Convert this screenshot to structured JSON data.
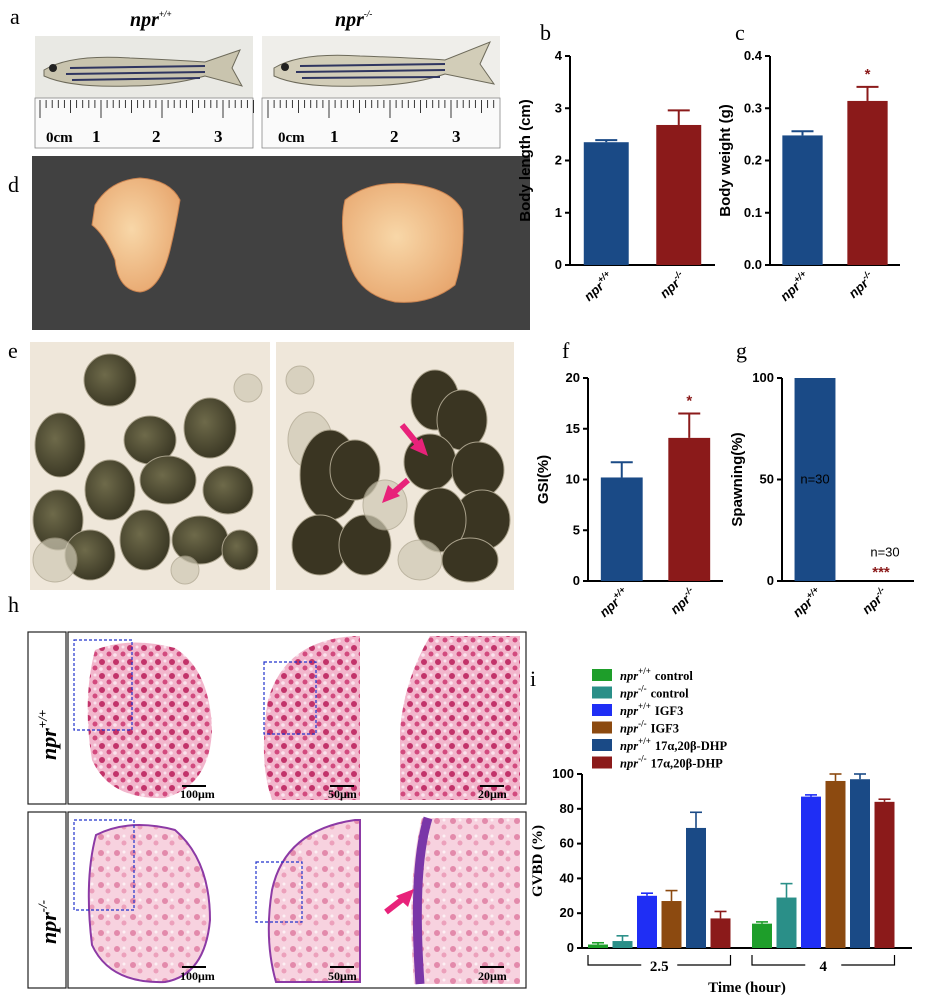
{
  "panel_labels": {
    "a": "a",
    "b": "b",
    "c": "c",
    "d": "d",
    "e": "e",
    "f": "f",
    "g": "g",
    "h": "h",
    "i": "i"
  },
  "genotypes": {
    "wt_base": "npr",
    "wt_sup": "+/+",
    "ko_base": "npr",
    "ko_sup": "-/-",
    "ko_sup_h": "-/-"
  },
  "ruler": {
    "unit": "0cm",
    "ticks": [
      "1",
      "2",
      "3"
    ]
  },
  "scale_bars": {
    "s100": "100μm",
    "s50": "50μm",
    "s20": "20μm"
  },
  "colors": {
    "wt": "#1a4a86",
    "ko": "#8b1a1a",
    "green": "#1e9e2a",
    "teal": "#2a8f88",
    "blue": "#1f2ef5",
    "brown": "#8c4a10",
    "navy": "#1a4a86",
    "maroon": "#8b1a1a",
    "star": "#8b1a1a",
    "arrow": "#e8227a",
    "dashed_box": "#2233cc"
  },
  "chart_data": [
    {
      "id": "b",
      "type": "bar",
      "categories": [
        "npr+/+",
        "npr-/-"
      ],
      "values": [
        2.35,
        2.68
      ],
      "errors": [
        0.04,
        0.28
      ],
      "ylabel": "Body length (cm)",
      "ylim": [
        0,
        4
      ],
      "yticks": [
        "0",
        "1",
        "2",
        "3",
        "4"
      ],
      "significance": [
        "",
        ""
      ]
    },
    {
      "id": "c",
      "type": "bar",
      "categories": [
        "npr+/+",
        "npr-/-"
      ],
      "values": [
        0.248,
        0.314
      ],
      "errors": [
        0.008,
        0.027
      ],
      "ylabel": "Body weight (g)",
      "ylim": [
        0,
        0.4
      ],
      "yticks": [
        "0.0",
        "0.1",
        "0.2",
        "0.3",
        "0.4"
      ],
      "significance": [
        "",
        "*"
      ]
    },
    {
      "id": "f",
      "type": "bar",
      "categories": [
        "npr+/+",
        "npr-/-"
      ],
      "values": [
        10.2,
        14.1
      ],
      "errors": [
        1.5,
        2.4
      ],
      "ylabel": "GSI(%)",
      "ylim": [
        0,
        20
      ],
      "yticks": [
        "0",
        "5",
        "10",
        "15",
        "20"
      ],
      "significance": [
        "",
        "*"
      ]
    },
    {
      "id": "g",
      "type": "bar",
      "categories": [
        "npr+/+",
        "npr-/-"
      ],
      "values": [
        100,
        0
      ],
      "ylabel": "Spawning(%)",
      "ylim": [
        0,
        100
      ],
      "yticks": [
        "0",
        "50",
        "100"
      ],
      "annotations": [
        "n=30",
        "n=30"
      ],
      "significance": [
        "",
        "***"
      ]
    },
    {
      "id": "i",
      "type": "bar",
      "ylabel": "GVBD (%)",
      "xlabel": "Time (hour)",
      "ylim": [
        0,
        100
      ],
      "yticks": [
        "0",
        "20",
        "40",
        "60",
        "80",
        "100"
      ],
      "groups": [
        "2.5",
        "4"
      ],
      "series": [
        {
          "name": "control",
          "genotype": "+/+",
          "color_key": "green",
          "values": [
            2,
            14
          ],
          "errors": [
            1,
            1
          ]
        },
        {
          "name": "control",
          "genotype": "-/-",
          "color_key": "teal",
          "values": [
            4,
            29
          ],
          "errors": [
            3,
            8
          ]
        },
        {
          "name": "IGF3",
          "genotype": "+/+",
          "color_key": "blue",
          "values": [
            30,
            87
          ],
          "errors": [
            1.5,
            1
          ]
        },
        {
          "name": "IGF3",
          "genotype": "-/-",
          "color_key": "brown",
          "values": [
            27,
            96
          ],
          "errors": [
            6,
            4
          ]
        },
        {
          "name": "17α,20β-DHP",
          "genotype": "+/+",
          "color_key": "navy",
          "values": [
            69,
            97
          ],
          "errors": [
            9,
            3
          ]
        },
        {
          "name": "17α,20β-DHP",
          "genotype": "-/-",
          "color_key": "maroon",
          "values": [
            17,
            84
          ],
          "errors": [
            4,
            1.5
          ]
        }
      ]
    }
  ]
}
